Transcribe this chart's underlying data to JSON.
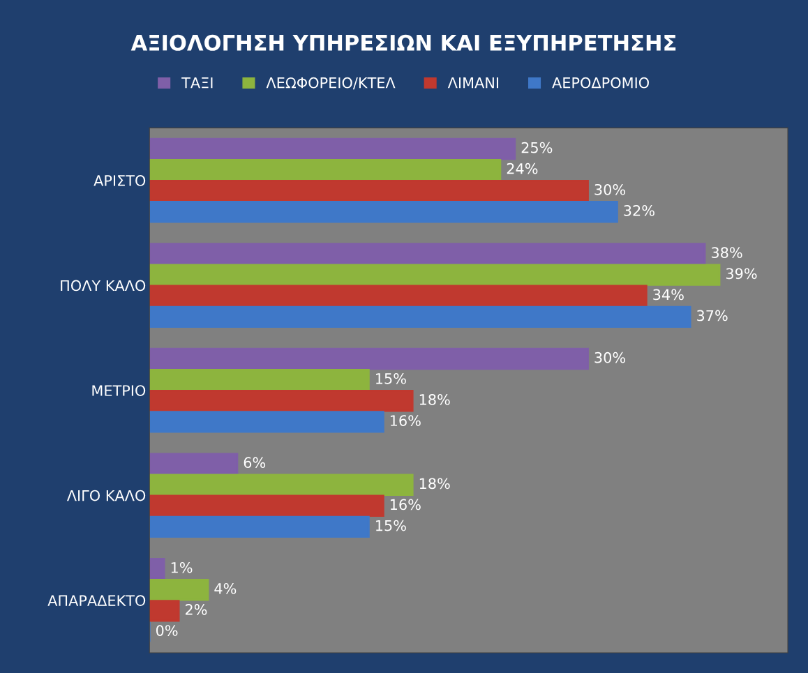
{
  "chart_data": {
    "type": "bar",
    "orientation": "horizontal",
    "title": "ΑΞΙΟΛΟΓΗΣΗ ΥΠΗΡΕΣΙΩΝ ΚΑΙ ΕΞΥΠΗΡΕΤΗΣΗΣ",
    "categories": [
      "ΑΡΙΣΤΟ",
      "ΠΟΛΥ ΚΑΛΟ",
      "ΜΕΤΡΙΟ",
      "ΛΙΓΟ ΚΑΛΟ",
      "ΑΠΑΡΑΔΕΚΤΟ"
    ],
    "series": [
      {
        "name": "ΤΑΞΙ",
        "color": "#7f5fa8",
        "values": [
          25,
          38,
          30,
          6,
          1
        ],
        "value_labels": [
          "25%",
          "38%",
          "30%",
          "6%",
          "1%"
        ]
      },
      {
        "name": "ΛΕΩΦΟΡΕΙΟ/ΚΤΕΛ",
        "color": "#8db43e",
        "values": [
          24,
          39,
          15,
          18,
          4
        ],
        "value_labels": [
          "24%",
          "39%",
          "15%",
          "18%",
          "4%"
        ]
      },
      {
        "name": "ΛΙΜΑΝΙ",
        "color": "#c0392f",
        "values": [
          30,
          34,
          18,
          16,
          2
        ],
        "value_labels": [
          "30%",
          "34%",
          "18%",
          "16%",
          "2%"
        ]
      },
      {
        "name": "ΑΕΡΟΔΡΟΜΙΟ",
        "color": "#3f78c8",
        "values": [
          32,
          37,
          16,
          15,
          0
        ],
        "value_labels": [
          "32%",
          "37%",
          "16%",
          "15%",
          "0%"
        ]
      }
    ],
    "legend": "top",
    "grid": false,
    "tick_labels": "y"
  }
}
